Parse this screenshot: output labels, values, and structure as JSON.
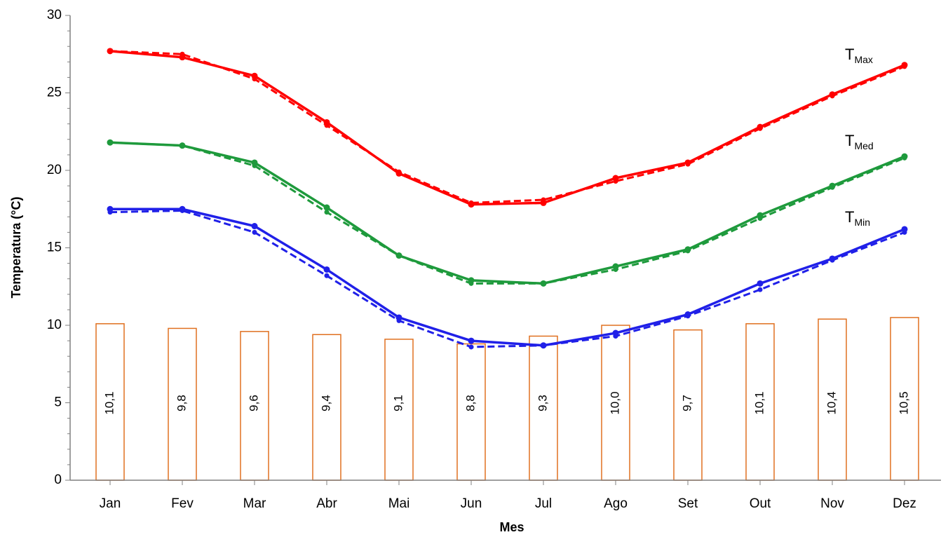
{
  "chart_data": {
    "type": "line",
    "xlabel": "Mes",
    "ylabel": "Temperatura (°C)",
    "ylim": [
      0,
      30
    ],
    "yticks": [
      "0",
      "5",
      "10",
      "15",
      "20",
      "25",
      "30"
    ],
    "categories": [
      "Jan",
      "Fev",
      "Mar",
      "Abr",
      "Mai",
      "Jun",
      "Jul",
      "Ago",
      "Set",
      "Out",
      "Nov",
      "Dez"
    ],
    "bars": {
      "values": [
        10.1,
        9.8,
        9.6,
        9.4,
        9.1,
        8.8,
        9.3,
        10.0,
        9.7,
        10.1,
        10.4,
        10.5
      ],
      "labels": [
        "10,1",
        "9,8",
        "9,6",
        "9,4",
        "9,1",
        "8,8",
        "9,3",
        "10,0",
        "9,7",
        "10,1",
        "10,4",
        "10,5"
      ],
      "color": "#E07020"
    },
    "series": [
      {
        "name": "Max",
        "label_main": "T",
        "label_sub": "Max",
        "color": "#FF0000",
        "solid": [
          27.7,
          27.3,
          26.1,
          23.1,
          19.8,
          17.8,
          17.9,
          19.5,
          20.5,
          22.8,
          24.9,
          26.8
        ],
        "dashed": [
          27.7,
          27.5,
          25.9,
          22.9,
          19.9,
          17.9,
          18.1,
          19.3,
          20.4,
          22.7,
          24.8,
          26.7
        ]
      },
      {
        "name": "Med",
        "label_main": "T",
        "label_sub": "Med",
        "color": "#1E9A3C",
        "solid": [
          21.8,
          21.6,
          20.5,
          17.6,
          14.5,
          12.9,
          12.7,
          13.8,
          14.9,
          17.1,
          19.0,
          20.9
        ],
        "dashed": [
          21.8,
          21.6,
          20.3,
          17.3,
          14.5,
          12.7,
          12.7,
          13.6,
          14.8,
          16.9,
          18.9,
          20.8
        ]
      },
      {
        "name": "Min",
        "label_main": "T",
        "label_sub": "Min",
        "color": "#2020E8",
        "solid": [
          17.5,
          17.5,
          16.4,
          13.6,
          10.5,
          9.0,
          8.7,
          9.5,
          10.7,
          12.7,
          14.3,
          16.2
        ],
        "dashed": [
          17.3,
          17.4,
          16.0,
          13.2,
          10.3,
          8.6,
          8.7,
          9.3,
          10.6,
          12.3,
          14.2,
          16.0
        ]
      }
    ]
  }
}
